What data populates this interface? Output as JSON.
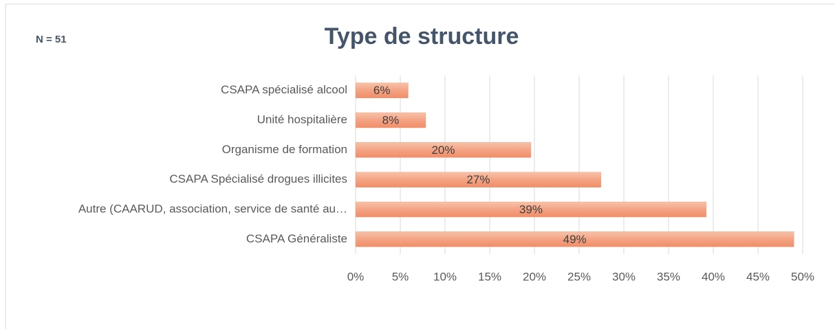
{
  "chart_data": {
    "type": "barh",
    "title": "Type de structure",
    "annotation": "N = 51",
    "categories": [
      "CSAPA spécialisé alcool",
      "Unité hospitalière",
      "Organisme de formation",
      "CSAPA Spécialisé drogues illicites",
      "Autre (CAARUD, association, service de santé au…",
      "CSAPA Généraliste"
    ],
    "values": [
      5.88,
      7.84,
      19.61,
      27.45,
      39.22,
      49.02
    ],
    "value_labels": [
      "6%",
      "8%",
      "20%",
      "27%",
      "39%",
      "49%"
    ],
    "color": "#f4a383",
    "xlim": [
      0,
      50
    ],
    "xticks": [
      {
        "value": 0,
        "label": "0%"
      },
      {
        "value": 5,
        "label": "5%"
      },
      {
        "value": 10,
        "label": "10%"
      },
      {
        "value": 15,
        "label": "15%"
      },
      {
        "value": 20,
        "label": "20%"
      },
      {
        "value": 25,
        "label": "25%"
      },
      {
        "value": 30,
        "label": "30%"
      },
      {
        "value": 35,
        "label": "35%"
      },
      {
        "value": 40,
        "label": "40%"
      },
      {
        "value": 45,
        "label": "45%"
      },
      {
        "value": 50,
        "label": "50%"
      }
    ],
    "grid": true
  }
}
